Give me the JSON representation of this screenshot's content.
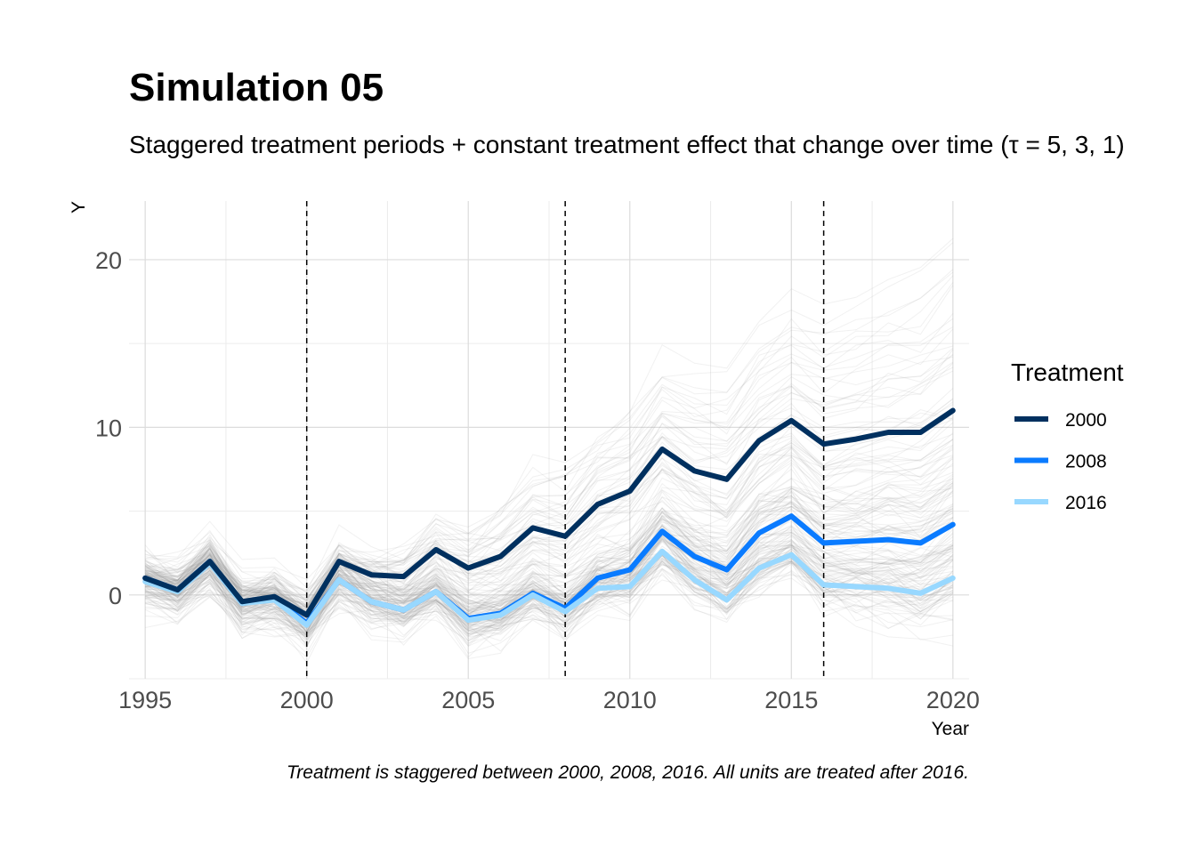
{
  "chart_data": {
    "type": "line",
    "title": "Simulation 05",
    "subtitle": "Staggered treatment periods + constant treatment effect that change over time (τ = 5, 3, 1)",
    "xlabel": "Year",
    "ylabel": "Y",
    "caption": "Treatment is staggered between 2000, 2008, 2016. All units are treated after 2016.",
    "xlim": [
      1994.5,
      2020.5
    ],
    "ylim": [
      -5,
      23.5
    ],
    "x_ticks": [
      1995,
      2000,
      2005,
      2010,
      2015,
      2020
    ],
    "y_ticks": [
      0,
      10,
      20
    ],
    "grid": true,
    "legend": {
      "title": "Treatment",
      "position": "right"
    },
    "treatment_years": [
      2000,
      2008,
      2016
    ],
    "x": [
      1995,
      1996,
      1997,
      1998,
      1999,
      2000,
      2001,
      2002,
      2003,
      2004,
      2005,
      2006,
      2007,
      2008,
      2009,
      2010,
      2011,
      2012,
      2013,
      2014,
      2015,
      2016,
      2017,
      2018,
      2019,
      2020
    ],
    "series": [
      {
        "name": "2000",
        "color": "#00305f",
        "values": [
          1.0,
          0.3,
          2.0,
          -0.4,
          -0.1,
          -1.2,
          2.0,
          1.2,
          1.1,
          2.7,
          1.6,
          2.3,
          4.0,
          3.5,
          5.4,
          6.2,
          8.7,
          7.4,
          6.9,
          9.2,
          10.4,
          9.0,
          9.3,
          9.7,
          9.7,
          11.0
        ]
      },
      {
        "name": "2008",
        "color": "#0a7bff",
        "values": [
          1.0,
          0.3,
          2.0,
          -0.5,
          -0.2,
          -1.7,
          0.9,
          -0.4,
          -0.9,
          0.2,
          -1.4,
          -1.1,
          0.1,
          -0.8,
          1.0,
          1.5,
          3.8,
          2.3,
          1.5,
          3.7,
          4.7,
          3.1,
          3.2,
          3.3,
          3.1,
          4.2
        ]
      },
      {
        "name": "2016",
        "color": "#98d8ff",
        "values": [
          0.8,
          0.2,
          1.9,
          -0.5,
          -0.3,
          -1.8,
          0.9,
          -0.4,
          -0.9,
          0.2,
          -1.5,
          -1.2,
          0.0,
          -1.0,
          0.4,
          0.5,
          2.6,
          0.9,
          -0.3,
          1.6,
          2.4,
          0.6,
          0.5,
          0.4,
          0.1,
          1.0
        ]
      }
    ]
  }
}
